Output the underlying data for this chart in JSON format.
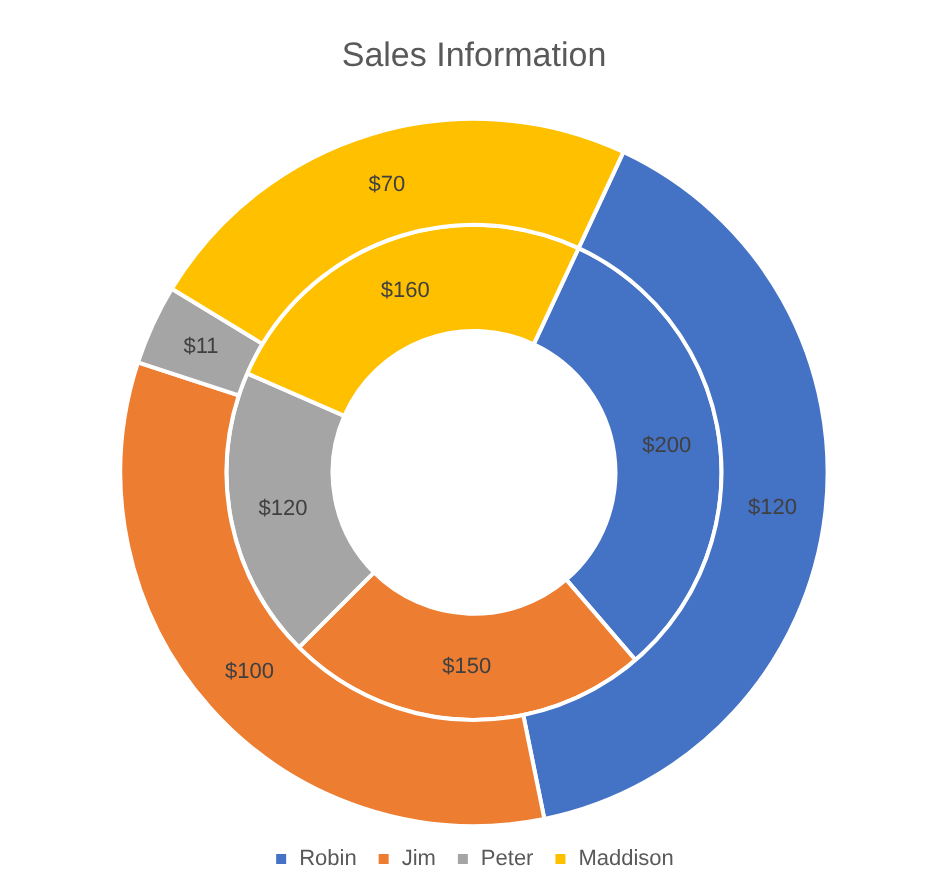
{
  "chart_data": {
    "type": "donut",
    "title": "Sales Information",
    "categories": [
      "Robin",
      "Jim",
      "Peter",
      "Maddison"
    ],
    "series": [
      {
        "values": [
          120,
          100,
          11,
          70
        ],
        "colors": [
          "#4472c4",
          "#ed7d31",
          "#a5a5a5",
          "#ffc000"
        ],
        "value_labels": [
          "$120",
          "$100",
          "$11",
          "$70"
        ]
      },
      {
        "values": [
          200,
          150,
          120,
          160
        ],
        "colors": [
          "#4472c4",
          "#ed7d31",
          "#a5a5a5",
          "#ffc000"
        ],
        "value_labels": [
          "$200",
          "$150",
          "$120",
          "$160"
        ]
      }
    ],
    "legend": "bottom"
  }
}
